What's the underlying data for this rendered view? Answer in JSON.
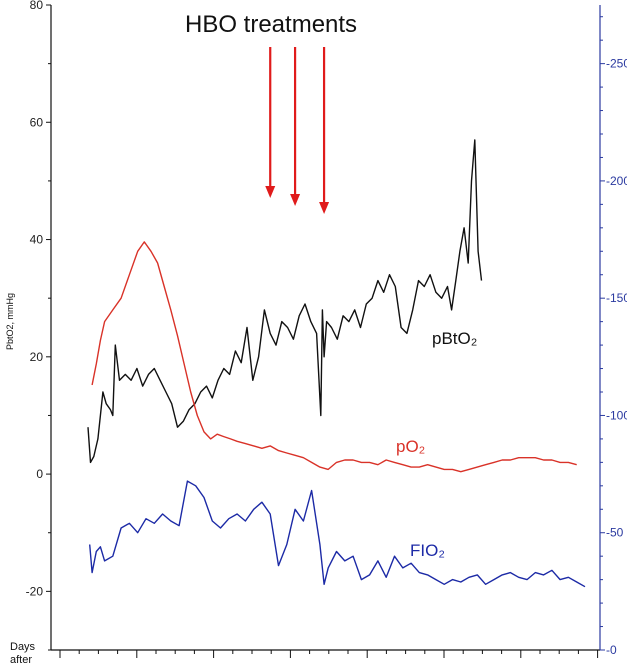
{
  "chart_data": {
    "type": "line",
    "title": "HBO treatments",
    "ylabel": "PbtO2, mmHg",
    "xlabel": "Days after",
    "ylim": [
      -30,
      80
    ],
    "y2lim": [
      0,
      275
    ],
    "yticks": [
      80,
      60,
      40,
      20,
      0,
      -20
    ],
    "y2ticks": [
      250,
      200,
      150,
      100,
      50,
      0
    ],
    "grid": false,
    "hbo_treatment_markers_x": [
      22,
      25,
      28.5
    ],
    "series": [
      {
        "name": "pBtO₂",
        "color": "#111111",
        "axis": "left",
        "x": [
          0,
          0.3,
          0.7,
          1.2,
          1.8,
          2.2,
          2.7,
          3.0,
          3.3,
          3.8,
          4.5,
          5.2,
          5.9,
          6.6,
          7.3,
          8.0,
          8.7,
          9.4,
          10.1,
          10.8,
          11.5,
          12.2,
          12.9,
          13.6,
          14.3,
          15.0,
          15.7,
          16.4,
          17.1,
          17.8,
          18.5,
          19.2,
          19.9,
          20.6,
          21.3,
          22.0,
          22.7,
          23.4,
          24.1,
          24.8,
          25.5,
          26.2,
          26.9,
          27.6,
          28.1,
          28.3,
          28.5,
          28.8,
          29.4,
          30.1,
          30.8,
          31.5,
          32.2,
          32.9,
          33.6,
          34.3,
          35.0,
          35.7,
          36.4,
          37.1,
          37.8,
          38.5,
          39.2,
          39.9,
          40.6,
          41.3,
          42.0,
          42.7,
          43.4,
          43.9,
          44.4,
          44.9,
          45.4,
          45.9,
          46.3,
          46.7,
          47.1,
          47.5
        ],
        "y": [
          8,
          2,
          3,
          6,
          14,
          12,
          11,
          10,
          22,
          16,
          17,
          16,
          18,
          15,
          17,
          18,
          16,
          14,
          12,
          8,
          9,
          11,
          12,
          14,
          15,
          13,
          16,
          18,
          17,
          21,
          19,
          25,
          16,
          20,
          28,
          24,
          22,
          26,
          25,
          23,
          27,
          29,
          26,
          24,
          10,
          28,
          20,
          26,
          25,
          23,
          27,
          26,
          28,
          25,
          29,
          30,
          33,
          31,
          34,
          32,
          25,
          24,
          28,
          33,
          32,
          34,
          31,
          30,
          32,
          28,
          33,
          38,
          42,
          36,
          50,
          57,
          38,
          33
        ]
      },
      {
        "name": "pO₂",
        "color": "#d93228",
        "axis": "right",
        "x": [
          0.5,
          1.0,
          1.5,
          2.0,
          3.0,
          4.0,
          5.0,
          6.0,
          6.8,
          7.6,
          8.4,
          9.2,
          10.0,
          10.8,
          11.6,
          12.4,
          13.2,
          14.0,
          14.8,
          15.6,
          16.4,
          17.2,
          18.0,
          19.0,
          20.0,
          21.0,
          22.0,
          23.0,
          24.0,
          25.0,
          26.0,
          27.0,
          28.0,
          29.0,
          30.0,
          31.0,
          32.0,
          33.0,
          34.0,
          35.0,
          36.0,
          37.0,
          38.0,
          39.0,
          40.0,
          41.0,
          42.0,
          43.0,
          44.0,
          45.0,
          46.0,
          47.0,
          48.0,
          49.0,
          50.0,
          51.0,
          52.0,
          53.0,
          54.0,
          55.0,
          56.0,
          57.0,
          58.0,
          59.0
        ],
        "y": [
          113,
          122,
          132,
          140,
          145,
          150,
          160,
          170,
          174,
          170,
          165,
          155,
          145,
          134,
          122,
          110,
          100,
          93,
          90,
          92,
          91,
          90,
          89,
          88,
          87,
          86,
          87,
          85,
          84,
          83,
          82,
          80,
          78,
          77,
          80,
          81,
          81,
          80,
          80,
          79,
          81,
          80,
          79,
          78,
          78,
          79,
          78,
          77,
          77,
          76,
          77,
          78,
          79,
          80,
          81,
          81,
          82,
          82,
          82,
          81,
          81,
          80,
          80,
          79
        ]
      },
      {
        "name": "FIO₂",
        "color": "#1c2aa6",
        "axis": "right",
        "x": [
          0.2,
          0.5,
          1.0,
          1.5,
          2.0,
          3.0,
          4.0,
          5.0,
          6.0,
          7.0,
          8.0,
          9.0,
          10.0,
          11.0,
          12.0,
          13.0,
          14.0,
          15.0,
          16.0,
          17.0,
          18.0,
          19.0,
          20.0,
          21.0,
          22.0,
          23.0,
          24.0,
          25.0,
          26.0,
          27.0,
          28.0,
          28.5,
          29.0,
          30.0,
          31.0,
          32.0,
          33.0,
          34.0,
          35.0,
          36.0,
          37.0,
          38.0,
          39.0,
          40.0,
          41.0,
          42.0,
          43.0,
          44.0,
          45.0,
          46.0,
          47.0,
          48.0,
          49.0,
          50.0,
          51.0,
          52.0,
          53.0,
          54.0,
          55.0,
          56.0,
          57.0,
          58.0,
          59.0,
          60.0
        ],
        "y": [
          45,
          33,
          42,
          44,
          38,
          40,
          52,
          54,
          50,
          56,
          54,
          58,
          55,
          53,
          72,
          70,
          65,
          55,
          52,
          56,
          58,
          55,
          60,
          63,
          58,
          36,
          45,
          60,
          55,
          68,
          45,
          28,
          35,
          42,
          38,
          40,
          30,
          32,
          38,
          31,
          40,
          35,
          37,
          33,
          32,
          30,
          28,
          30,
          29,
          31,
          32,
          28,
          30,
          32,
          33,
          31,
          30,
          33,
          32,
          34,
          30,
          31,
          29,
          27
        ]
      }
    ]
  }
}
